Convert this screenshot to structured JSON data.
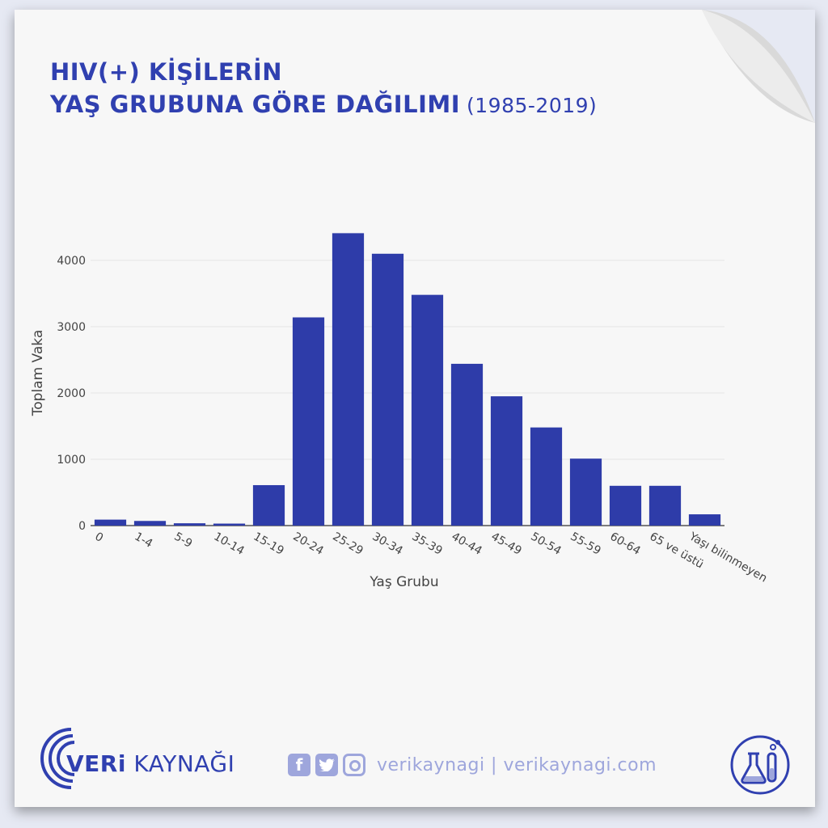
{
  "header": {
    "title_line1": "HIV(+) KİŞİLERİN",
    "title_line2": "YAŞ GRUBUNA GÖRE DAĞILIMI",
    "subtitle": "(1985-2019)"
  },
  "chart_data": {
    "type": "bar",
    "categories": [
      "0",
      "1-4",
      "5-9",
      "10-14",
      "15-19",
      "20-24",
      "25-29",
      "30-34",
      "35-39",
      "40-44",
      "45-49",
      "50-54",
      "55-59",
      "60-64",
      "65 ve üstü",
      "Yaşı bilinmeyen"
    ],
    "values": [
      90,
      70,
      35,
      30,
      610,
      3140,
      4410,
      4100,
      3480,
      2440,
      1950,
      1480,
      1010,
      600,
      600,
      170
    ],
    "xlabel": "Yaş Grubu",
    "ylabel": "Toplam Vaka",
    "ylim": [
      0,
      4500
    ],
    "yticks": [
      0,
      1000,
      2000,
      3000,
      4000
    ],
    "grid": true,
    "bar_color": "#2e3ca9"
  },
  "footer": {
    "brand_bold": "VERi",
    "brand_rest": " KAYNAĞI",
    "social_text": "verikaynagi | verikaynagi.com",
    "icons": [
      "facebook-icon",
      "twitter-icon",
      "instagram-icon",
      "lab-flask-icon"
    ]
  },
  "colors": {
    "accent": "#3040b0",
    "muted": "#9ea6dc",
    "background": "#e6e9f3"
  }
}
